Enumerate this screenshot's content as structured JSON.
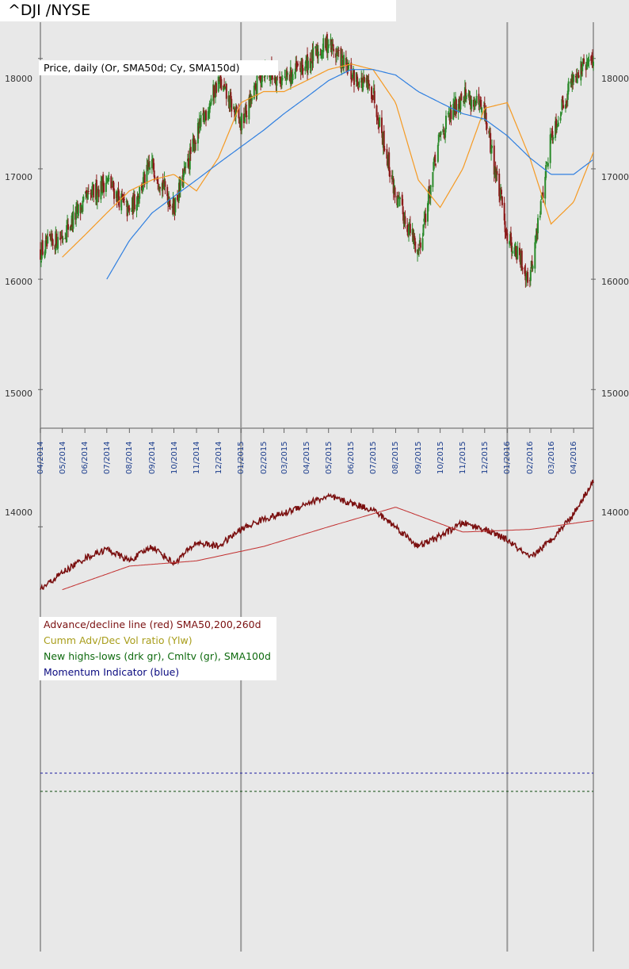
{
  "header": {
    "title": "^DJI /NYSE"
  },
  "colors": {
    "price_up": "#2a8a2a",
    "price_down": "#8b1a1a",
    "sma50": "#f59a23",
    "sma150": "#2f7fe0",
    "sma_extra": "#8a4a1a",
    "ad_line": "#7a0f0f",
    "ad_sma": "#c23030",
    "vol_ratio": "#c8c020",
    "highs_lows": "#0e4a0e",
    "cumulative": "#1e9a1e",
    "momentum": "#0a0a80"
  },
  "chart_data": [
    {
      "type": "candlestick",
      "title": "Price, daily (Or, SMA50d; Cy, SMA150d)",
      "ylim": [
        14650,
        18300
      ],
      "y_ticks": [
        "18000",
        "17000",
        "16000",
        "15000"
      ],
      "x_ticks": [
        "04/2014",
        "05/2014",
        "06/2014",
        "07/2014",
        "08/2014",
        "09/2014",
        "10/2014",
        "11/2014",
        "12/2014",
        "01/2015",
        "02/2015",
        "03/2015",
        "04/2015",
        "05/2015",
        "06/2015",
        "07/2015",
        "08/2015",
        "09/2015",
        "10/2015",
        "11/2015",
        "12/2015",
        "01/2016",
        "02/2016",
        "03/2016",
        "04/2016"
      ],
      "series": [
        {
          "name": "Price",
          "x": [
            "2014-04",
            "2014-05",
            "2014-06",
            "2014-07",
            "2014-08",
            "2014-09",
            "2014-10",
            "2014-11",
            "2014-12",
            "2015-01",
            "2015-02",
            "2015-03",
            "2015-04",
            "2015-05",
            "2015-06",
            "2015-07",
            "2015-08",
            "2015-09",
            "2015-10",
            "2015-11",
            "2015-12",
            "2016-01",
            "2016-02",
            "2016-03",
            "2016-04",
            "2016-05"
          ],
          "values": [
            16250,
            16400,
            16700,
            16900,
            16600,
            17050,
            16650,
            17300,
            17800,
            17400,
            17900,
            17800,
            17950,
            18150,
            17850,
            17700,
            16750,
            16250,
            17300,
            17700,
            17500,
            16400,
            16000,
            17300,
            17850,
            18000
          ]
        },
        {
          "name": "SMA50d",
          "x": [
            "2014-05",
            "2014-06",
            "2014-07",
            "2014-08",
            "2014-09",
            "2014-10",
            "2014-11",
            "2014-12",
            "2015-01",
            "2015-02",
            "2015-03",
            "2015-04",
            "2015-05",
            "2015-06",
            "2015-07",
            "2015-08",
            "2015-09",
            "2015-10",
            "2015-11",
            "2015-12",
            "2016-01",
            "2016-02",
            "2016-03",
            "2016-04",
            "2016-05"
          ],
          "values": [
            16200,
            16400,
            16600,
            16800,
            16900,
            16950,
            16800,
            17100,
            17600,
            17700,
            17700,
            17800,
            17900,
            17950,
            17900,
            17600,
            16900,
            16650,
            17000,
            17550,
            17600,
            17100,
            16500,
            16700,
            17200
          ]
        },
        {
          "name": "SMA150d",
          "x": [
            "2014-07",
            "2014-08",
            "2014-09",
            "2014-10",
            "2014-11",
            "2014-12",
            "2015-01",
            "2015-02",
            "2015-03",
            "2015-04",
            "2015-05",
            "2015-06",
            "2015-07",
            "2015-08",
            "2015-09",
            "2015-10",
            "2015-11",
            "2015-12",
            "2016-01",
            "2016-02",
            "2016-03",
            "2016-04",
            "2016-05"
          ],
          "values": [
            16000,
            16350,
            16600,
            16750,
            16900,
            17050,
            17200,
            17350,
            17500,
            17650,
            17800,
            17900,
            17900,
            17850,
            17700,
            17600,
            17500,
            17450,
            17300,
            17100,
            16950,
            16950,
            17100
          ]
        }
      ]
    },
    {
      "type": "line",
      "ylim": [
        13300,
        14450
      ],
      "y_ticks": [
        "14000"
      ],
      "legend": [
        "Advance/decline line (red) SMA50,200,260d",
        "Cumm Adv/Dec Vol ratio (Ylw)",
        "New highs-lows (drk gr), Cmltv (gr), SMA100d",
        "Momentum Indicator (blue)"
      ],
      "series": [
        {
          "name": "Advance/decline line",
          "x": [
            "2014-04",
            "2014-05",
            "2014-06",
            "2014-07",
            "2014-08",
            "2014-09",
            "2014-10",
            "2014-11",
            "2014-12",
            "2015-01",
            "2015-02",
            "2015-03",
            "2015-04",
            "2015-05",
            "2015-06",
            "2015-07",
            "2015-08",
            "2015-09",
            "2015-10",
            "2015-11",
            "2015-12",
            "2016-01",
            "2016-02",
            "2016-03",
            "2016-04",
            "2016-05"
          ],
          "values": [
            13520,
            13650,
            13760,
            13830,
            13740,
            13850,
            13720,
            13880,
            13850,
            13980,
            14060,
            14100,
            14180,
            14230,
            14180,
            14130,
            14000,
            13850,
            13930,
            14030,
            13980,
            13900,
            13760,
            13900,
            14100,
            14380
          ]
        }
      ]
    }
  ]
}
